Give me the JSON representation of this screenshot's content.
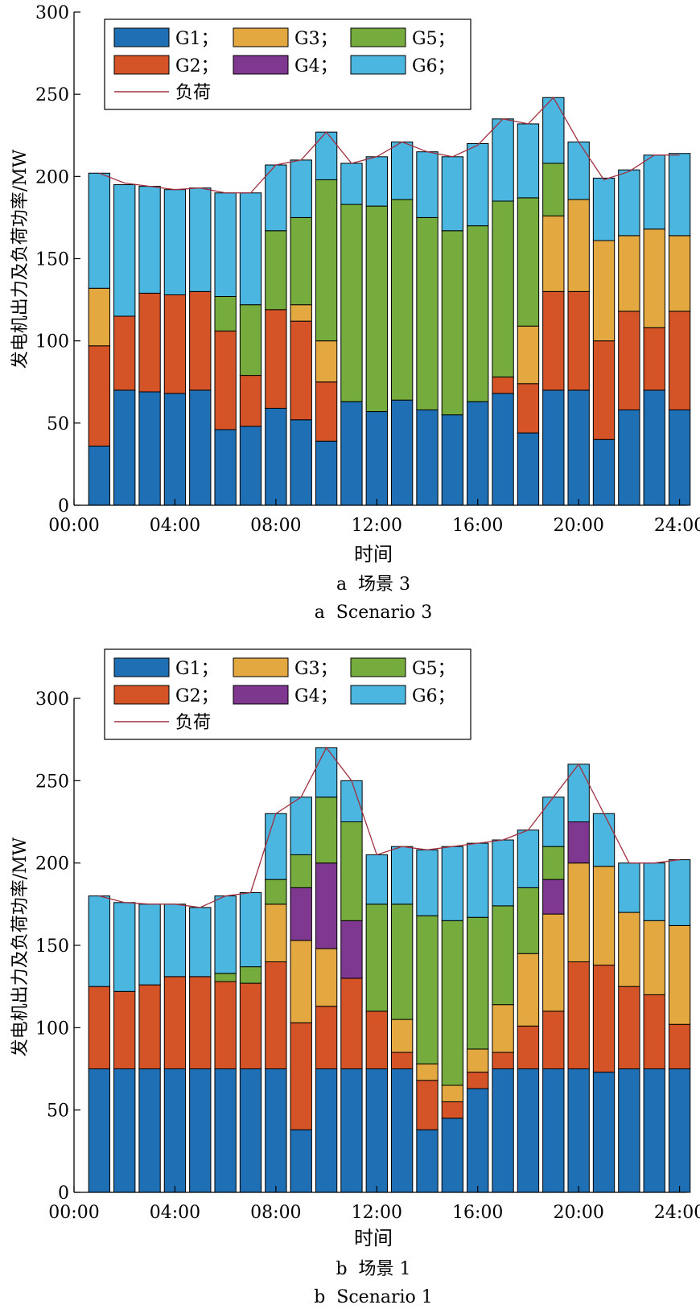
{
  "legend_labels": [
    "G1；",
    "G2；",
    "G3；",
    "G4；",
    "G5；",
    "G6；",
    "负荷"
  ],
  "colors": {
    "G1": "#1f6fb5",
    "G2": "#d45427",
    "G3": "#e3a83f",
    "G4": "#7e3890",
    "G5": "#76ab3d",
    "G6": "#4bb6e0",
    "load": "#a03040"
  },
  "x_axis_title": "时间",
  "y_axis_title": "发电机出力及负荷功率/MW",
  "chart_data": [
    {
      "type": "bar",
      "stacked": true,
      "caption_cn": "a  场景 3",
      "caption_en": "a  Scenario 3",
      "xlabel": "时间",
      "ylabel": "发电机出力及负荷功率/MW",
      "ylim": [
        0,
        300
      ],
      "yticks": [
        0,
        50,
        100,
        150,
        200,
        250,
        300
      ],
      "xlim": [
        0,
        24.3
      ],
      "xticks": [
        "00:00",
        "04:00",
        "08:00",
        "12:00",
        "16:00",
        "20:00",
        "24:00"
      ],
      "hours": [
        1,
        2,
        3,
        4,
        5,
        6,
        7,
        8,
        9,
        10,
        11,
        12,
        13,
        14,
        15,
        16,
        17,
        18,
        19,
        20,
        21,
        22,
        23,
        24
      ],
      "series": [
        {
          "name": "G1",
          "values": [
            36,
            70,
            69,
            68,
            70,
            46,
            48,
            59,
            52,
            39,
            63,
            57,
            64,
            58,
            55,
            63,
            68,
            44,
            70,
            70,
            40,
            58,
            70,
            58
          ]
        },
        {
          "name": "G2",
          "values": [
            61,
            45,
            60,
            60,
            60,
            60,
            31,
            60,
            60,
            36,
            0,
            0,
            0,
            0,
            0,
            0,
            10,
            30,
            60,
            60,
            60,
            60,
            38,
            60
          ]
        },
        {
          "name": "G3",
          "values": [
            35,
            0,
            0,
            0,
            0,
            0,
            0,
            0,
            10,
            25,
            0,
            0,
            0,
            0,
            0,
            0,
            0,
            35,
            46,
            56,
            61,
            46,
            60,
            46
          ]
        },
        {
          "name": "G4",
          "values": [
            0,
            0,
            0,
            0,
            0,
            0,
            0,
            0,
            0,
            0,
            0,
            0,
            0,
            0,
            0,
            0,
            0,
            0,
            0,
            0,
            0,
            0,
            0,
            0
          ]
        },
        {
          "name": "G5",
          "values": [
            0,
            0,
            0,
            0,
            0,
            21,
            43,
            48,
            53,
            98,
            120,
            125,
            122,
            117,
            112,
            107,
            107,
            78,
            32,
            0,
            0,
            0,
            0,
            0
          ]
        },
        {
          "name": "G6",
          "values": [
            70,
            80,
            65,
            64,
            63,
            63,
            68,
            40,
            35,
            29,
            25,
            30,
            35,
            40,
            45,
            50,
            50,
            45,
            40,
            35,
            38,
            40,
            45,
            50
          ]
        }
      ],
      "load": [
        202,
        196,
        194,
        192,
        193,
        190,
        190,
        207,
        210,
        227,
        208,
        212,
        221,
        215,
        212,
        219,
        235,
        232,
        248,
        221,
        198,
        203,
        213,
        213
      ]
    },
    {
      "type": "bar",
      "stacked": true,
      "caption_cn": "b  场景 1",
      "caption_en": "b  Scenario 1",
      "xlabel": "时间",
      "ylabel": "发电机出力及负荷功率/MW",
      "ylim": [
        0,
        300
      ],
      "yticks": [
        0,
        50,
        100,
        150,
        200,
        250,
        300
      ],
      "xlim": [
        0,
        24.3
      ],
      "xticks": [
        "00:00",
        "04:00",
        "08:00",
        "12:00",
        "16:00",
        "20:00",
        "24:00"
      ],
      "hours": [
        1,
        2,
        3,
        4,
        5,
        6,
        7,
        8,
        9,
        10,
        11,
        12,
        13,
        14,
        15,
        16,
        17,
        18,
        19,
        20,
        21,
        22,
        23,
        24
      ],
      "series": [
        {
          "name": "G1",
          "values": [
            75,
            75,
            75,
            75,
            75,
            75,
            75,
            75,
            38,
            75,
            75,
            75,
            75,
            38,
            45,
            63,
            75,
            75,
            75,
            75,
            73,
            75,
            75,
            75
          ]
        },
        {
          "name": "G2",
          "values": [
            50,
            47,
            51,
            56,
            56,
            53,
            52,
            65,
            65,
            38,
            55,
            35,
            10,
            30,
            10,
            10,
            10,
            26,
            35,
            65,
            65,
            50,
            45,
            27
          ]
        },
        {
          "name": "G3",
          "values": [
            0,
            0,
            0,
            0,
            0,
            0,
            0,
            35,
            50,
            35,
            0,
            0,
            20,
            10,
            10,
            14,
            29,
            44,
            59,
            60,
            60,
            45,
            45,
            60
          ]
        },
        {
          "name": "G4",
          "values": [
            0,
            0,
            0,
            0,
            0,
            0,
            0,
            0,
            32,
            52,
            35,
            0,
            0,
            0,
            0,
            0,
            0,
            0,
            21,
            25,
            0,
            0,
            0,
            0
          ]
        },
        {
          "name": "G5",
          "values": [
            0,
            0,
            0,
            0,
            0,
            5,
            10,
            15,
            20,
            40,
            60,
            65,
            70,
            90,
            100,
            80,
            60,
            40,
            20,
            0,
            0,
            0,
            0,
            0
          ]
        },
        {
          "name": "G6",
          "values": [
            55,
            54,
            49,
            44,
            42,
            47,
            45,
            40,
            35,
            30,
            25,
            30,
            35,
            40,
            45,
            45,
            40,
            35,
            30,
            35,
            32,
            30,
            35,
            40
          ]
        }
      ],
      "load": [
        180,
        176,
        175,
        175,
        173,
        180,
        182,
        230,
        240,
        270,
        250,
        205,
        210,
        208,
        210,
        212,
        214,
        220,
        240,
        260,
        230,
        200,
        200,
        202
      ]
    }
  ]
}
